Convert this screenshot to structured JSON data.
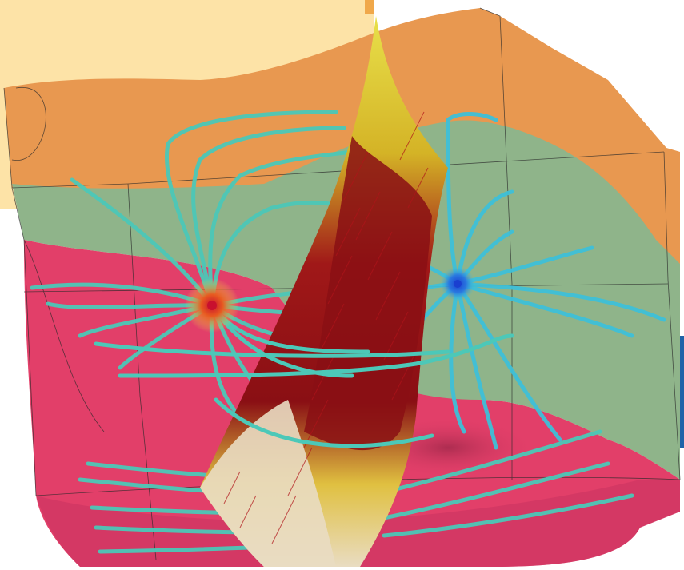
{
  "scene": {
    "description_visible_text": "",
    "colors": {
      "backdrop_panel": "#fde3a7",
      "backdrop_panel_edge": "#f0a84a",
      "accent_edge_right": "#1f63a8",
      "layer_top": "#e89850",
      "layer_middle": "#8fb48a",
      "layer_bottom": "#e23f69",
      "layer_bottom_dark": "#c93360",
      "streamline": "#4cc8b8",
      "streamline_blue": "#3ec0d8",
      "fault_plane_light": "#d9cf3a",
      "fault_plane_dark": "#8a0f14",
      "fault_plane_pale": "#e9dcc2",
      "source_pole": "#c8102e",
      "sink_pole": "#1a4fd0",
      "grid_line": "#2a2a2a"
    }
  }
}
